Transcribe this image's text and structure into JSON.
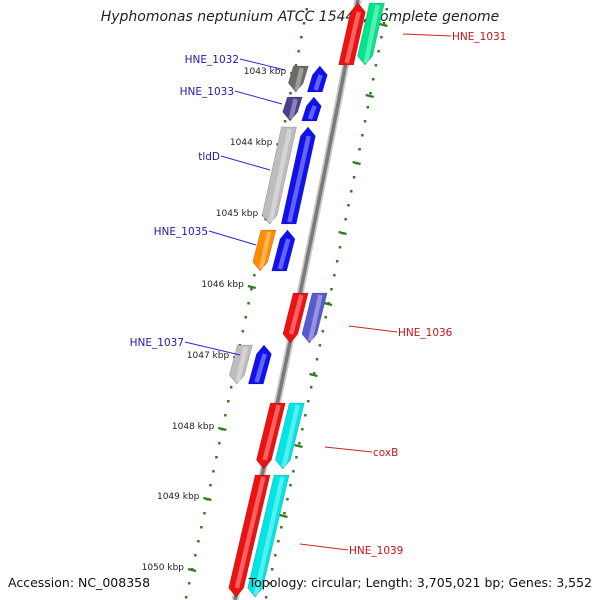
{
  "title": "Hyphomonas neptunium ATCC 15444, complete genome",
  "footer": {
    "accession": "Accession: NC_008358",
    "topology": "Topology: circular; Length: 3,705,021 bp; Genes: 3,552"
  },
  "colors": {
    "backbone": "#7a7a7a",
    "tick": "#2f7d1e",
    "dot": "#2f7d1e",
    "ruler_text": "#222222",
    "label_left": "#1c1caa",
    "label_right": "#c81414",
    "line_left": "#2b2bd8",
    "line_right": "#d42020"
  },
  "ruler_labels": [
    "1043 kbp",
    "1044 kbp",
    "1045 kbp",
    "1046 kbp",
    "1047 kbp",
    "1048 kbp",
    "1049 kbp",
    "1050 kbp"
  ],
  "genes": [
    {
      "label": "HNE_1031",
      "side": "right",
      "track": "forward",
      "cog_color": "#00e58c",
      "gene_color": "#ee1111",
      "dir": "up",
      "partial": true
    },
    {
      "label": "HNE_1032",
      "side": "left",
      "track": "reverse",
      "cog_color": "#6b6b6b",
      "gene_color": "#1111ee",
      "dir": "up"
    },
    {
      "label": "HNE_1033",
      "side": "left",
      "track": "reverse",
      "cog_color": "#4b3f8f",
      "gene_color": "#1111ee",
      "dir": "up"
    },
    {
      "label": "tldD",
      "side": "left",
      "track": "reverse",
      "cog_color": "#bdbdbd",
      "gene_color": "#1111ee",
      "dir": "up"
    },
    {
      "label": "HNE_1035",
      "side": "left",
      "track": "reverse",
      "cog_color": "#ff8c00",
      "gene_color": "#1111ee",
      "dir": "up"
    },
    {
      "label": "HNE_1036",
      "side": "right",
      "track": "forward",
      "cog_color": "#5a5ad0",
      "gene_color": "#ee1111",
      "dir": "down"
    },
    {
      "label": "HNE_1037",
      "side": "left",
      "track": "reverse",
      "cog_color": "#bdbdbd",
      "gene_color": "#1111ee",
      "dir": "up"
    },
    {
      "label": "coxB",
      "side": "right",
      "track": "forward",
      "cog_color": "#00e5e5",
      "gene_color": "#ee1111",
      "dir": "down"
    },
    {
      "label": "HNE_1039",
      "side": "right",
      "track": "forward",
      "cog_color": "#00e5e5",
      "gene_color": "#ee1111",
      "dir": "down"
    }
  ]
}
